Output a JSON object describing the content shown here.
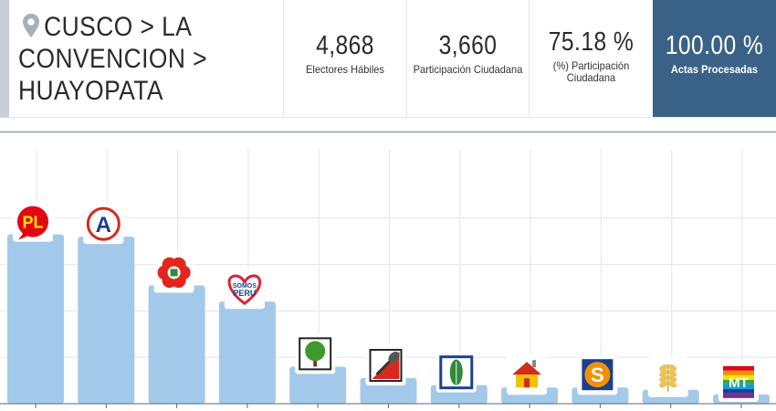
{
  "location": {
    "lines": [
      "CUSCO > LA",
      "CONVENCION >",
      "HUAYOPATA"
    ]
  },
  "stats": {
    "electores": {
      "value": "4,868",
      "label": "Electores Hábiles"
    },
    "participacion": {
      "value": "3,660",
      "label": "Participación Ciudadana"
    },
    "porcentaje": {
      "value": "75.18 %",
      "label_line1": "(%) Participación",
      "label_line2": "Ciudadana"
    },
    "actas": {
      "value": "100.00 %",
      "label": "Actas Procesadas"
    }
  },
  "colors": {
    "bar": "#a3c9ea",
    "accent": "#3a6287",
    "grid": "#e6e6e6",
    "axis": "#666666"
  },
  "chart_data": {
    "type": "bar",
    "ylim": [
      0,
      100
    ],
    "grid": true,
    "categories": [
      "peru-libre-logo",
      "accion-popular-logo",
      "fuerza-popular-logo",
      "somos-peru-logo",
      "tree-party-logo",
      "shovel-party-logo",
      "leaf-party-logo",
      "house-party-logo",
      "s-party-logo",
      "wheat-party-logo",
      "mt-rainbow-logo"
    ],
    "values": [
      73,
      72,
      51,
      44,
      16,
      11,
      8,
      7,
      7,
      6,
      4
    ],
    "logo_text": {
      "peru-libre-logo": "PL",
      "accion-popular-logo": "A",
      "somos-peru-logo": "SOMOS PERU",
      "s-party-logo": "S",
      "mt-rainbow-logo": "MT"
    }
  }
}
